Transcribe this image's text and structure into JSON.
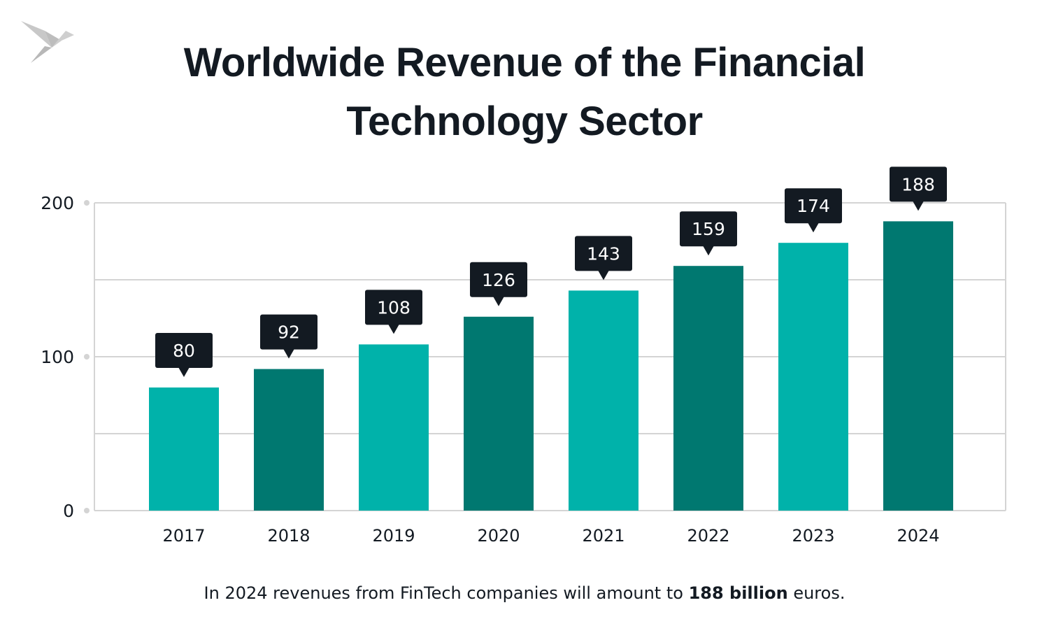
{
  "logo": {
    "icon": "origami-bird-icon",
    "color": "#c8c8c8"
  },
  "chart_data": {
    "type": "bar",
    "title": "Worldwide Revenue of the Financial Technology Sector",
    "categories": [
      "2017",
      "2018",
      "2019",
      "2020",
      "2021",
      "2022",
      "2023",
      "2024"
    ],
    "values": [
      80,
      92,
      108,
      126,
      143,
      159,
      174,
      188
    ],
    "data_labels": [
      "80",
      "92",
      "108",
      "126",
      "143",
      "159",
      "174",
      "188"
    ],
    "xlabel": "",
    "ylabel": "",
    "ylim": [
      0,
      200
    ],
    "yticks": [
      0,
      100,
      200
    ],
    "ytick_labels": [
      "0",
      "100",
      "200"
    ],
    "grid": true,
    "colors": {
      "bar_light": "#00b2aa",
      "bar_dark": "#007870",
      "label_bg": "#131a22",
      "grid": "#d4d4d4"
    }
  },
  "caption": {
    "before": "In 2024 revenues from FinTech companies will amount to ",
    "bold": "188 billion",
    "after": " euros."
  }
}
